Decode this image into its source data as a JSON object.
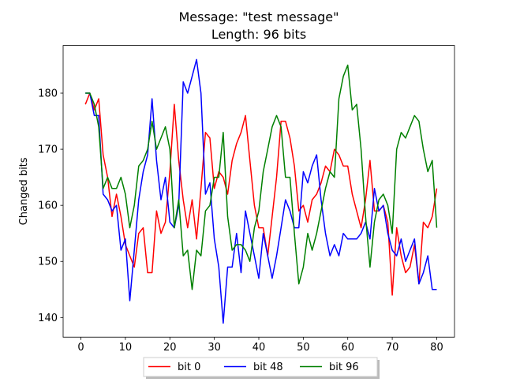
{
  "chart_data": {
    "type": "line",
    "title_line1": "Message: \"test message\"",
    "title_line2": "Length: 96 bits",
    "xlabel": "",
    "ylabel": "Changed bits",
    "xlim": [
      -4,
      84
    ],
    "ylim": [
      136.5,
      188.5
    ],
    "xticks": [
      0,
      10,
      20,
      30,
      40,
      50,
      60,
      70,
      80
    ],
    "yticks": [
      140,
      150,
      160,
      170,
      180
    ],
    "grid": false,
    "legend_position": "bottom-center",
    "x": [
      1,
      2,
      3,
      4,
      5,
      6,
      7,
      8,
      9,
      10,
      11,
      12,
      13,
      14,
      15,
      16,
      17,
      18,
      19,
      20,
      21,
      22,
      23,
      24,
      25,
      26,
      27,
      28,
      29,
      30,
      31,
      32,
      33,
      34,
      35,
      36,
      37,
      38,
      39,
      40,
      41,
      42,
      43,
      44,
      45,
      46,
      47,
      48,
      49,
      50,
      51,
      52,
      53,
      54,
      55,
      56,
      57,
      58,
      59,
      60,
      61,
      62,
      63,
      64,
      65,
      66,
      67,
      68,
      69,
      70,
      71,
      72,
      73,
      74,
      75,
      76,
      77,
      78,
      79,
      80
    ],
    "series": [
      {
        "name": "bit 0",
        "color": "#ff0000",
        "values": [
          178,
          180,
          177,
          179,
          169,
          165,
          158,
          162,
          158,
          153,
          151,
          149,
          155,
          156,
          148,
          148,
          159,
          155,
          157,
          166,
          178,
          168,
          161,
          156,
          161,
          154,
          163,
          173,
          172,
          163,
          166,
          165,
          162,
          168,
          171,
          173,
          176,
          168,
          160,
          156,
          156,
          151,
          158,
          165,
          175,
          175,
          172,
          167,
          159,
          160,
          157,
          161,
          162,
          164,
          167,
          166,
          170,
          169,
          167,
          167,
          162,
          159,
          156,
          161,
          168,
          159,
          159,
          160,
          157,
          144,
          156,
          151,
          148,
          149,
          153,
          146,
          157,
          156,
          158,
          163
        ]
      },
      {
        "name": "bit 48",
        "color": "#0000ff",
        "values": [
          180,
          180,
          176,
          176,
          162,
          161,
          159,
          160,
          152,
          154,
          143,
          152,
          161,
          166,
          169,
          179,
          168,
          161,
          165,
          157,
          156,
          160,
          182,
          180,
          183,
          186,
          180,
          162,
          164,
          154,
          149,
          139,
          149,
          149,
          155,
          148,
          159,
          155,
          151,
          147,
          155,
          151,
          147,
          151,
          156,
          161,
          159,
          156,
          156,
          166,
          164,
          167,
          169,
          161,
          155,
          151,
          153,
          151,
          155,
          154,
          154,
          154,
          155,
          157,
          154,
          163,
          159,
          160,
          155,
          152,
          151,
          154,
          150,
          152,
          154,
          146,
          148,
          151,
          145,
          145
        ]
      },
      {
        "name": "bit 96",
        "color": "#008000",
        "values": [
          180,
          180,
          178,
          174,
          163,
          165,
          163,
          163,
          165,
          162,
          156,
          160,
          167,
          168,
          170,
          175,
          170,
          172,
          174,
          170,
          156,
          161,
          151,
          152,
          145,
          152,
          151,
          159,
          160,
          165,
          165,
          173,
          158,
          152,
          153,
          153,
          152,
          150,
          156,
          159,
          166,
          170,
          174,
          176,
          174,
          165,
          165,
          155,
          146,
          149,
          155,
          152,
          155,
          159,
          163,
          166,
          165,
          179,
          183,
          185,
          177,
          178,
          170,
          158,
          149,
          157,
          161,
          162,
          160,
          155,
          170,
          173,
          172,
          174,
          176,
          175,
          170,
          166,
          168,
          156
        ]
      }
    ]
  }
}
